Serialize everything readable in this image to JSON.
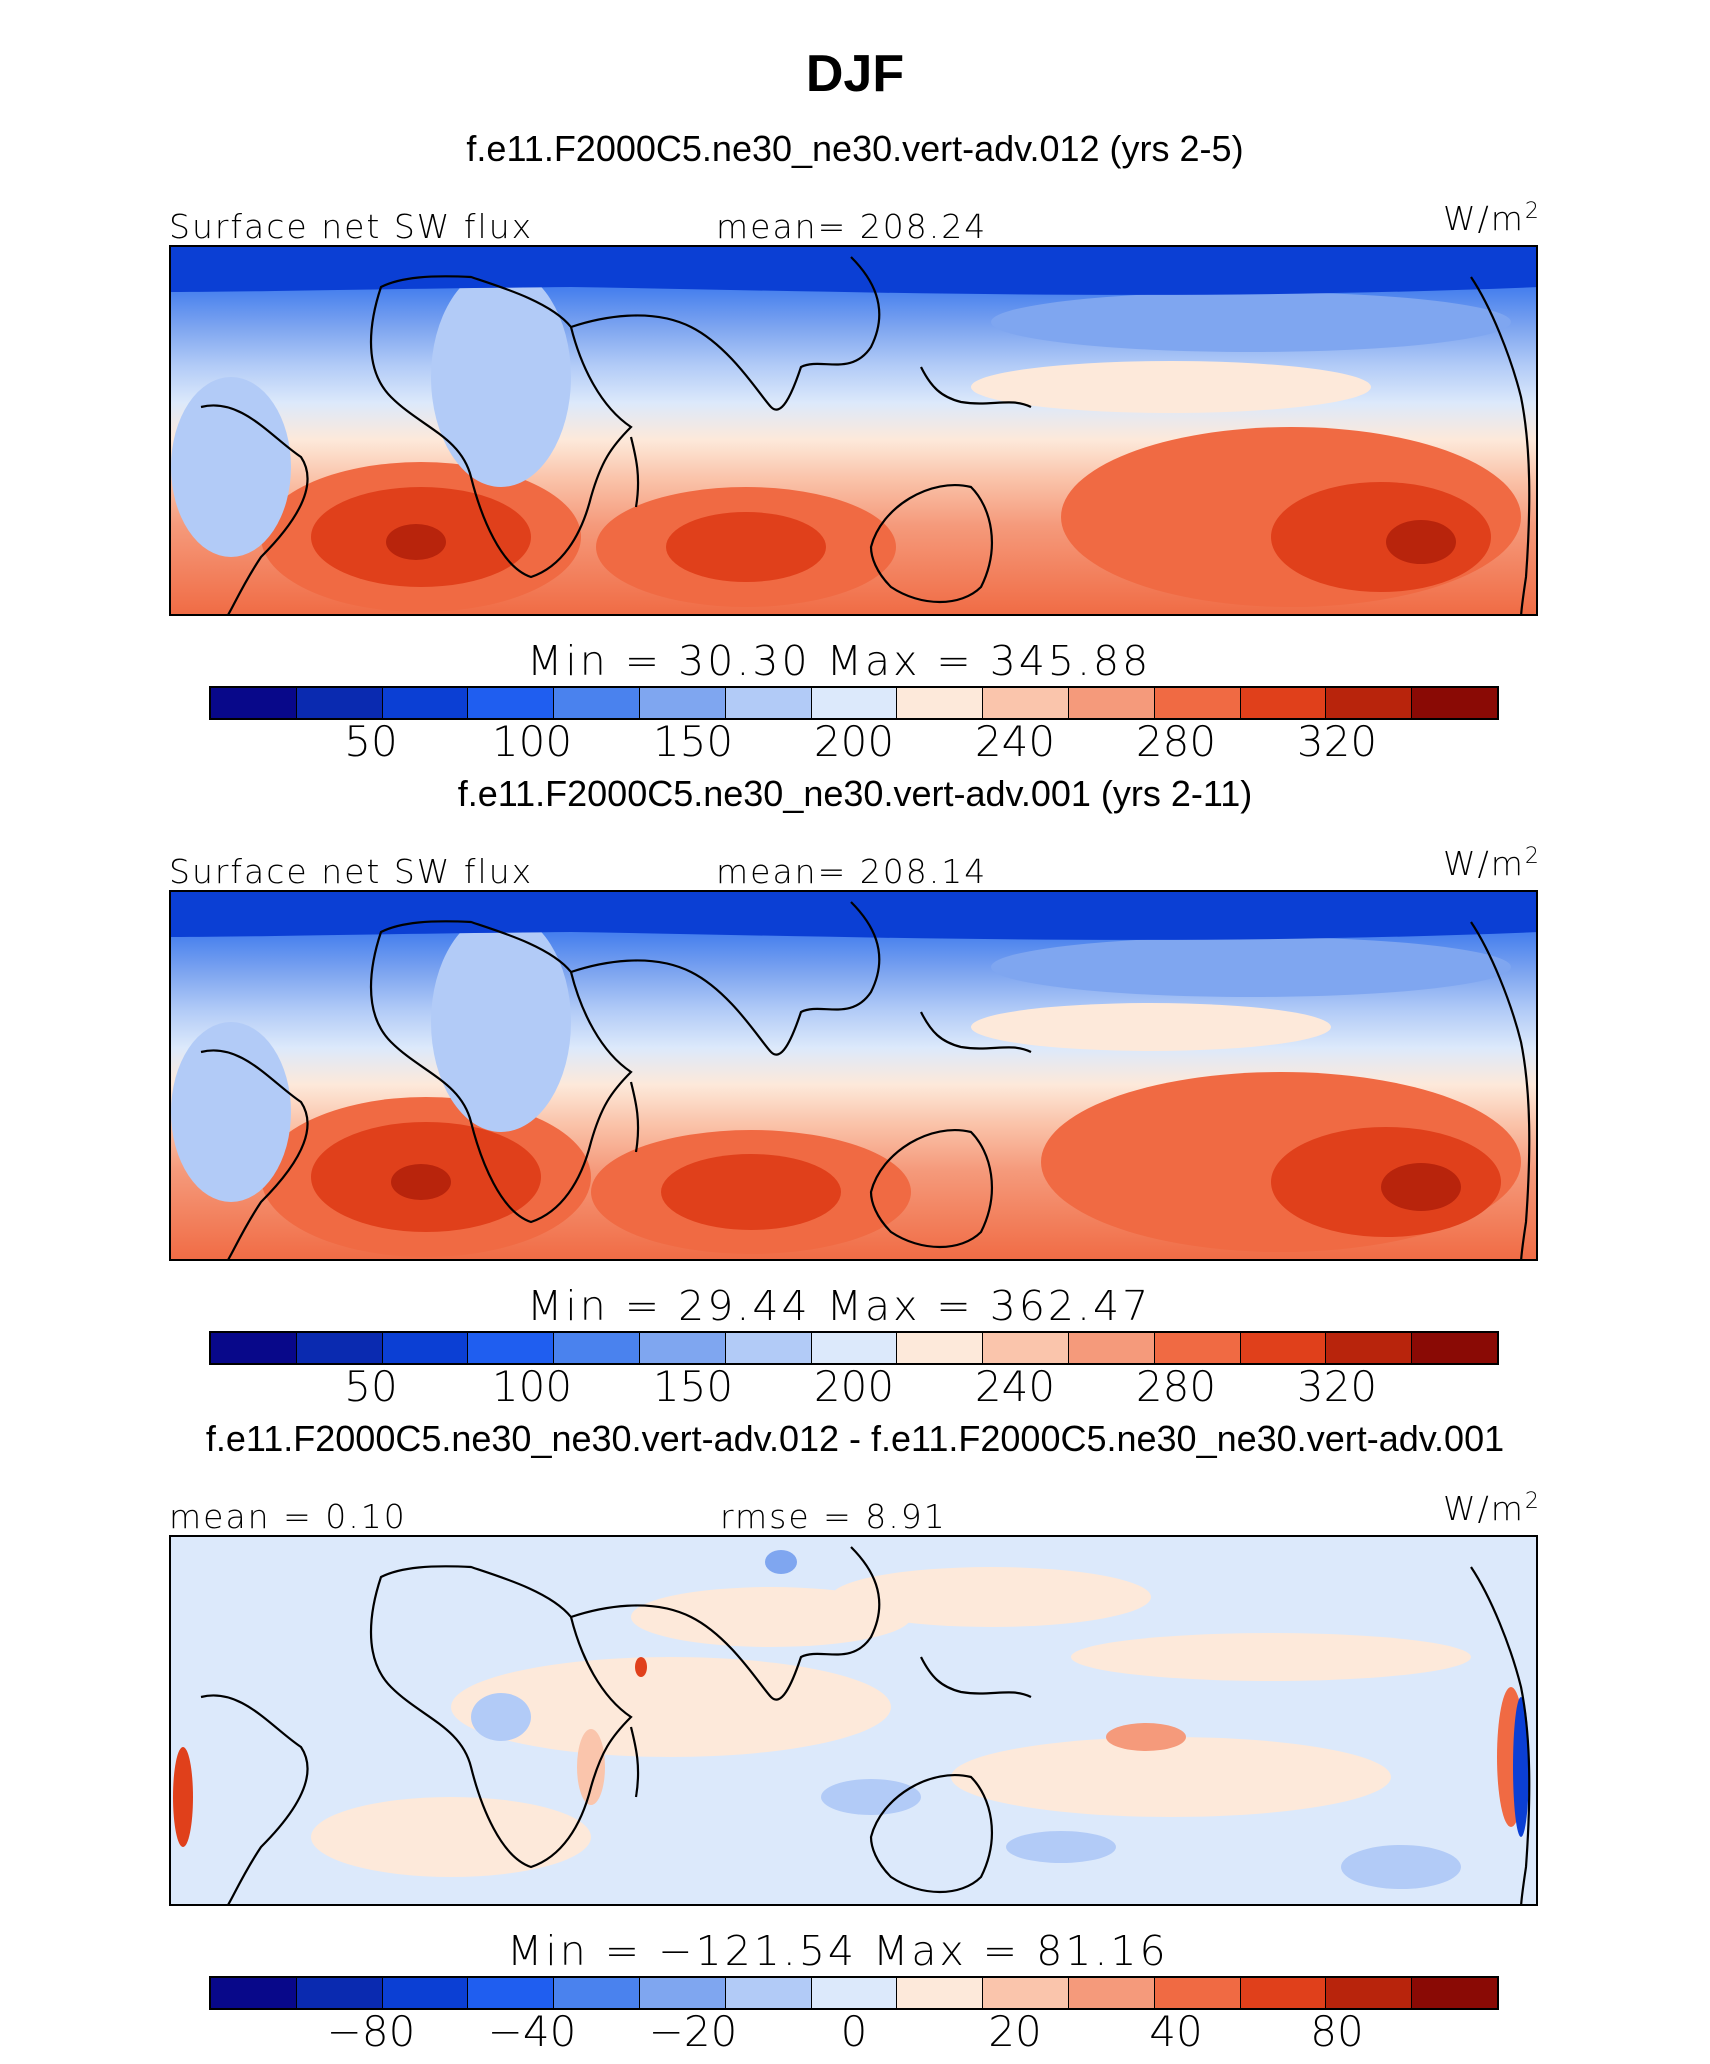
{
  "figure": {
    "title": "DJF",
    "units": "W/m",
    "units_exp": "2"
  },
  "panels": [
    {
      "case": "f.e11.F2000C5.ne30_ne30.vert-adv.012 (yrs 2-5)",
      "left_label": "Surface net SW flux",
      "center_label": "mean=  208.24",
      "min_max": "Min  =   30.30  Max  =  345.88",
      "colorbar_ticks": [
        "50",
        "100",
        "150",
        "200",
        "240",
        "280",
        "320"
      ]
    },
    {
      "case": "f.e11.F2000C5.ne30_ne30.vert-adv.001 (yrs 2-11)",
      "left_label": "Surface net SW flux",
      "center_label": "mean=  208.14",
      "min_max": "Min  =   29.44  Max  =  362.47",
      "colorbar_ticks": [
        "50",
        "100",
        "150",
        "200",
        "240",
        "280",
        "320"
      ]
    },
    {
      "case": "f.e11.F2000C5.ne30_ne30.vert-adv.012 - f.e11.F2000C5.ne30_ne30.vert-adv.001",
      "left_label": "mean =    0.10",
      "center_label": "rmse =    8.91",
      "min_max": "Min  = −121.54  Max  =   81.16",
      "colorbar_ticks": [
        "−80",
        "−40",
        "−20",
        "0",
        "20",
        "40",
        "80"
      ]
    }
  ],
  "colorbar_colors": [
    "#08088a",
    "#0a2ab0",
    "#0b3fd4",
    "#1f5ef0",
    "#4a82ee",
    "#7fa6f0",
    "#b2cbf7",
    "#dce9fb",
    "#fde9da",
    "#fac5ac",
    "#f59a7b",
    "#f06a43",
    "#e0401b",
    "#b8240c",
    "#8a0a05"
  ]
}
